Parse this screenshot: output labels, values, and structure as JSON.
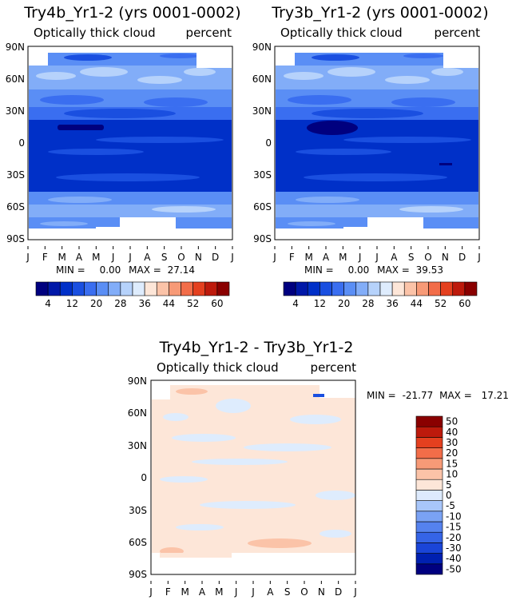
{
  "figure": {
    "variable": "Optically thick cloud",
    "units": "percent",
    "month_labels": [
      "J",
      "F",
      "M",
      "A",
      "M",
      "J",
      "J",
      "A",
      "S",
      "O",
      "N",
      "D",
      "J"
    ],
    "lat_labels": [
      "90N",
      "60N",
      "30N",
      "0",
      "30S",
      "60S",
      "90S"
    ]
  },
  "chart_data": [
    {
      "type": "heatmap",
      "title": "Try4b_Yr1-2 (yrs 0001-0002)",
      "subtitle_left": "Optically thick cloud",
      "subtitle_right": "percent",
      "xlabel": "",
      "ylabel": "",
      "x_ticks": [
        "J",
        "F",
        "M",
        "A",
        "M",
        "J",
        "J",
        "A",
        "S",
        "O",
        "N",
        "D",
        "J"
      ],
      "y_ticks": [
        "90N",
        "60N",
        "30N",
        "0",
        "30S",
        "60S",
        "90S"
      ],
      "ylim": [
        -90,
        90
      ],
      "stats": {
        "min_label": "MIN =",
        "min": "0.00",
        "max_label": "MAX =",
        "max": "27.14"
      },
      "colorbar": {
        "levels": [
          4,
          8,
          12,
          16,
          20,
          24,
          28,
          32,
          36,
          40,
          44,
          48,
          52,
          56,
          60
        ],
        "labels": [
          "4",
          "12",
          "20",
          "28",
          "36",
          "44",
          "52",
          "60"
        ],
        "colors": [
          "#00007f",
          "#0018a8",
          "#0030c8",
          "#1a4fe0",
          "#3a6ef0",
          "#5a8ef5",
          "#82adf8",
          "#b6d2fb",
          "#deecfd",
          "#fde6d8",
          "#fbc3a8",
          "#f79a77",
          "#f26d49",
          "#e4401f",
          "#bd1a0c",
          "#8a0000"
        ]
      },
      "bands": [
        {
          "lat": 80,
          "value": 14
        },
        {
          "lat": 70,
          "value": 24
        },
        {
          "lat": 60,
          "value": 22
        },
        {
          "lat": 45,
          "value": 14
        },
        {
          "lat": 30,
          "value": 10
        },
        {
          "lat": 15,
          "value": 3
        },
        {
          "lat": 0,
          "value": 6
        },
        {
          "lat": -15,
          "value": 3
        },
        {
          "lat": -30,
          "value": 4
        },
        {
          "lat": -45,
          "value": 11
        },
        {
          "lat": -60,
          "value": 22
        },
        {
          "lat": -70,
          "value": 20
        }
      ]
    },
    {
      "type": "heatmap",
      "title": "Try3b_Yr1-2 (yrs 0001-0002)",
      "subtitle_left": "Optically thick cloud",
      "subtitle_right": "percent",
      "xlabel": "",
      "ylabel": "",
      "x_ticks": [
        "J",
        "F",
        "M",
        "A",
        "M",
        "J",
        "J",
        "A",
        "S",
        "O",
        "N",
        "D",
        "J"
      ],
      "y_ticks": [
        "90N",
        "60N",
        "30N",
        "0",
        "30S",
        "60S",
        "90S"
      ],
      "ylim": [
        -90,
        90
      ],
      "stats": {
        "min_label": "MIN =",
        "min": "0.00",
        "max_label": "MAX =",
        "max": "39.53"
      },
      "colorbar": {
        "levels": [
          4,
          8,
          12,
          16,
          20,
          24,
          28,
          32,
          36,
          40,
          44,
          48,
          52,
          56,
          60
        ],
        "labels": [
          "4",
          "12",
          "20",
          "28",
          "36",
          "44",
          "52",
          "60"
        ],
        "colors": [
          "#00007f",
          "#0018a8",
          "#0030c8",
          "#1a4fe0",
          "#3a6ef0",
          "#5a8ef5",
          "#82adf8",
          "#b6d2fb",
          "#deecfd",
          "#fde6d8",
          "#fbc3a8",
          "#f79a77",
          "#f26d49",
          "#e4401f",
          "#bd1a0c",
          "#8a0000"
        ]
      },
      "bands": [
        {
          "lat": 80,
          "value": 14
        },
        {
          "lat": 70,
          "value": 24
        },
        {
          "lat": 60,
          "value": 22
        },
        {
          "lat": 45,
          "value": 14
        },
        {
          "lat": 30,
          "value": 10
        },
        {
          "lat": 15,
          "value": 3
        },
        {
          "lat": 0,
          "value": 6
        },
        {
          "lat": -15,
          "value": 3
        },
        {
          "lat": -30,
          "value": 4
        },
        {
          "lat": -45,
          "value": 11
        },
        {
          "lat": -60,
          "value": 22
        },
        {
          "lat": -70,
          "value": 20
        }
      ]
    },
    {
      "type": "heatmap",
      "title": "Try4b_Yr1-2 - Try3b_Yr1-2",
      "subtitle_left": "Optically thick cloud",
      "subtitle_right": "percent",
      "xlabel": "",
      "ylabel": "",
      "x_ticks": [
        "J",
        "F",
        "M",
        "A",
        "M",
        "J",
        "J",
        "A",
        "S",
        "O",
        "N",
        "D",
        "J"
      ],
      "y_ticks": [
        "90N",
        "60N",
        "30N",
        "0",
        "30S",
        "60S",
        "90S"
      ],
      "ylim": [
        -90,
        90
      ],
      "stats": {
        "min_label": "MIN =",
        "min": "-21.77",
        "max_label": "MAX =",
        "max": "17.21"
      },
      "colorbar": {
        "levels": [
          -50,
          -40,
          -30,
          -20,
          -15,
          -10,
          -5,
          0,
          5,
          10,
          15,
          20,
          30,
          40,
          50
        ],
        "labels": [
          "50",
          "40",
          "30",
          "20",
          "15",
          "10",
          "5",
          "0",
          "-5",
          "-10",
          "-15",
          "-20",
          "-30",
          "-40",
          "-50"
        ],
        "colors": [
          "#00007f",
          "#0020b0",
          "#1a45d8",
          "#3564e6",
          "#5582ee",
          "#7aa2f4",
          "#a8c6fa",
          "#ddeafd",
          "#fde6d8",
          "#fbc3a8",
          "#f79a77",
          "#f26d49",
          "#e4401f",
          "#bd1a0c",
          "#8a0000"
        ]
      },
      "bands": [
        {
          "lat": 80,
          "value": 3
        },
        {
          "lat": 60,
          "value": 1
        },
        {
          "lat": 40,
          "value": -2
        },
        {
          "lat": 20,
          "value": 1
        },
        {
          "lat": 0,
          "value": 2
        },
        {
          "lat": -20,
          "value": 1
        },
        {
          "lat": -40,
          "value": -2
        },
        {
          "lat": -60,
          "value": 3
        },
        {
          "lat": -75,
          "value": 1
        }
      ]
    }
  ]
}
